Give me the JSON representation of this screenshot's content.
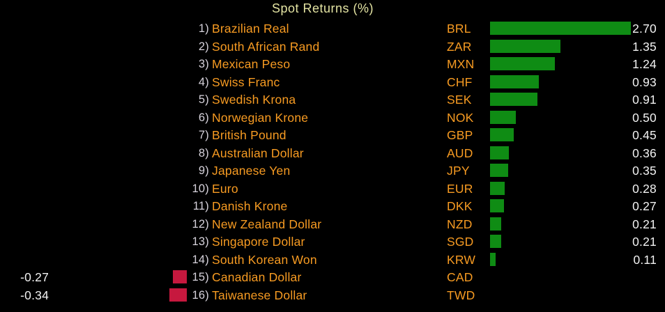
{
  "header": {
    "title": "Spot Returns (%)"
  },
  "colors": {
    "background": "#000000",
    "title_text": "#e3e3a2",
    "label_orange": "#f79b22",
    "rank_gray": "#d7d3dc",
    "value_white": "#f2f2f2",
    "positive_bar": "#0f8c14",
    "negative_bar": "#c6183e"
  },
  "chart_data": {
    "type": "bar",
    "orientation": "horizontal",
    "title": "Spot Returns (%)",
    "xlabel": "",
    "ylabel": "",
    "legend": "none",
    "grid": false,
    "value_format": "0.00",
    "rank_labels": [
      "1)",
      "2)",
      "3)",
      "4)",
      "5)",
      "6)",
      "7)",
      "8)",
      "9)",
      "10)",
      "11)",
      "12)",
      "13)",
      "14)",
      "15)",
      "16)"
    ],
    "categories": [
      "Brazilian Real",
      "South African Rand",
      "Mexican Peso",
      "Swiss Franc",
      "Swedish Krona",
      "Norwegian Krone",
      "British Pound",
      "Australian Dollar",
      "Japanese Yen",
      "Euro",
      "Danish Krone",
      "New Zealand Dollar",
      "Singapore Dollar",
      "South Korean Won",
      "Canadian Dollar",
      "Taiwanese Dollar"
    ],
    "codes": [
      "BRL",
      "ZAR",
      "MXN",
      "CHF",
      "SEK",
      "NOK",
      "GBP",
      "AUD",
      "JPY",
      "EUR",
      "DKK",
      "NZD",
      "SGD",
      "KRW",
      "CAD",
      "TWD"
    ],
    "values": [
      2.7,
      1.35,
      1.24,
      0.93,
      0.91,
      0.5,
      0.45,
      0.36,
      0.35,
      0.28,
      0.27,
      0.21,
      0.21,
      0.11,
      -0.27,
      -0.34
    ],
    "positive_color": "#0f8c14",
    "negative_color": "#c6183e"
  }
}
